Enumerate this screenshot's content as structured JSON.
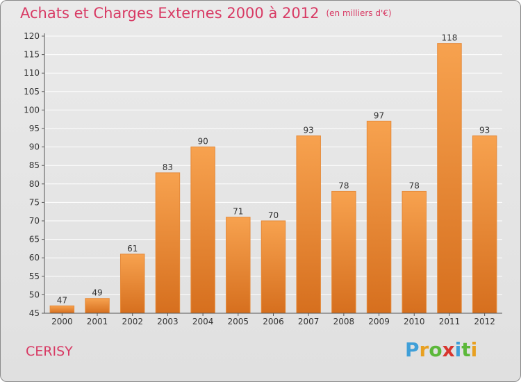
{
  "title": "Achats et Charges Externes 2000 à 2012",
  "subtitle": "(en milliers d'€)",
  "commune": "CERISY",
  "brand": {
    "letters": [
      "P",
      "r",
      "o",
      "x",
      "i",
      "t",
      "i"
    ],
    "colors": [
      "#3f9fd8",
      "#e8a020",
      "#5cb83a",
      "#d8352e",
      "#3f9fd8",
      "#5cb83a",
      "#e8a020"
    ]
  },
  "colors": {
    "title": "#d83a64",
    "bar_top": "#f7a24f",
    "bar_bottom": "#d66f1e",
    "grid": "#ffffff",
    "axis_text": "#333333"
  },
  "chart_data": {
    "type": "bar",
    "categories": [
      "2000",
      "2001",
      "2002",
      "2003",
      "2004",
      "2005",
      "2006",
      "2007",
      "2008",
      "2009",
      "2010",
      "2011",
      "2012"
    ],
    "values": [
      47,
      49,
      61,
      83,
      90,
      71,
      70,
      93,
      78,
      97,
      78,
      118,
      93
    ],
    "ylim": [
      45,
      120
    ],
    "yticks": [
      45,
      50,
      55,
      60,
      65,
      70,
      75,
      80,
      85,
      90,
      95,
      100,
      105,
      110,
      115,
      120
    ],
    "grid": true,
    "xlabel": "",
    "ylabel": ""
  }
}
